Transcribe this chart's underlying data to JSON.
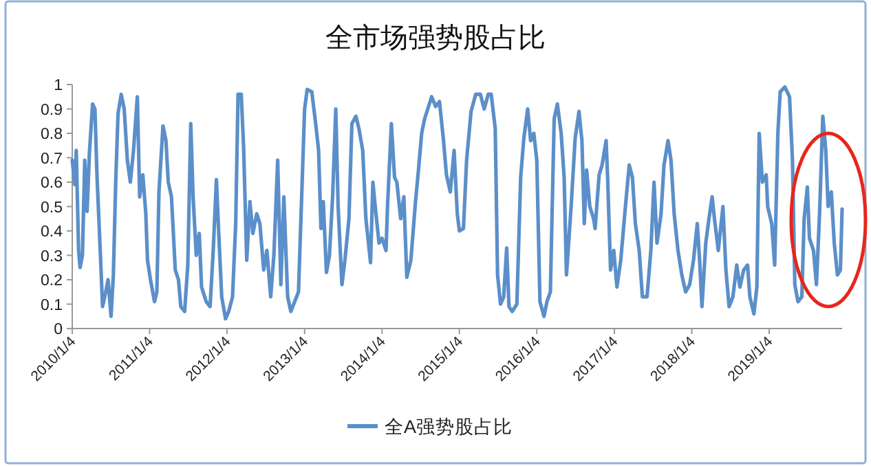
{
  "chart_data": {
    "type": "line",
    "title": "全市场强势股占比",
    "x": [
      "2010-01-04",
      "2010-01-16",
      "2010-01-23",
      "2010-02-03",
      "2010-02-10",
      "2010-02-21",
      "2010-03-04",
      "2010-03-15",
      "2010-03-26",
      "2010-04-10",
      "2010-04-21",
      "2010-05-01",
      "2010-05-16",
      "2010-05-27",
      "2010-06-11",
      "2010-06-22",
      "2010-07-06",
      "2010-07-17",
      "2010-07-28",
      "2010-08-08",
      "2010-08-23",
      "2010-09-06",
      "2010-09-21",
      "2010-10-05",
      "2010-10-20",
      "2010-11-07",
      "2010-11-18",
      "2010-12-03",
      "2010-12-17",
      "2010-12-25",
      "2011-01-08",
      "2011-01-27",
      "2011-02-07",
      "2011-02-17",
      "2011-03-08",
      "2011-03-22",
      "2011-04-02",
      "2011-04-17",
      "2011-05-05",
      "2011-05-20",
      "2011-05-31",
      "2011-06-18",
      "2011-07-03",
      "2011-07-17",
      "2011-07-28",
      "2011-08-12",
      "2011-08-26",
      "2011-09-06",
      "2011-09-28",
      "2011-10-16",
      "2011-10-31",
      "2011-11-15",
      "2011-11-26",
      "2011-12-10",
      "2011-12-28",
      "2012-01-12",
      "2012-01-30",
      "2012-02-14",
      "2012-02-25",
      "2012-03-11",
      "2012-03-22",
      "2012-04-06",
      "2012-04-21",
      "2012-05-05",
      "2012-05-23",
      "2012-06-07",
      "2012-06-25",
      "2012-07-10",
      "2012-07-28",
      "2012-08-12",
      "2012-08-30",
      "2012-09-14",
      "2012-09-28",
      "2012-10-16",
      "2012-10-31",
      "2012-12-06",
      "2013-01-04",
      "2013-01-16",
      "2013-02-07",
      "2013-02-25",
      "2013-03-11",
      "2013-03-22",
      "2013-04-02",
      "2013-04-17",
      "2013-05-01",
      "2013-05-16",
      "2013-05-31",
      "2013-06-11",
      "2013-06-29",
      "2013-07-13",
      "2013-08-01",
      "2013-08-15",
      "2013-09-03",
      "2013-09-17",
      "2013-10-05",
      "2013-10-20",
      "2013-11-11",
      "2013-11-22",
      "2013-12-03",
      "2013-12-21",
      "2014-01-04",
      "2014-01-23",
      "2014-01-30",
      "2014-02-17",
      "2014-03-04",
      "2014-03-15",
      "2014-04-02",
      "2014-04-17",
      "2014-05-01",
      "2014-05-20",
      "2014-06-11",
      "2014-06-25",
      "2014-07-10",
      "2014-07-24",
      "2014-08-08",
      "2014-08-26",
      "2014-09-14",
      "2014-10-02",
      "2014-10-20",
      "2014-11-04",
      "2014-11-22",
      "2014-12-10",
      "2014-12-25",
      "2015-01-04",
      "2015-01-23",
      "2015-02-07",
      "2015-02-28",
      "2015-03-22",
      "2015-04-13",
      "2015-05-01",
      "2015-05-20",
      "2015-06-03",
      "2015-06-22",
      "2015-07-03",
      "2015-07-17",
      "2015-08-01",
      "2015-08-15",
      "2015-08-26",
      "2015-09-10",
      "2015-10-02",
      "2015-10-20",
      "2015-11-04",
      "2015-11-22",
      "2015-12-06",
      "2015-12-21",
      "2016-01-04",
      "2016-01-19",
      "2016-02-07",
      "2016-02-21",
      "2016-03-08",
      "2016-03-26",
      "2016-04-10",
      "2016-04-28",
      "2016-05-12",
      "2016-05-23",
      "2016-06-14",
      "2016-07-03",
      "2016-07-21",
      "2016-08-04",
      "2016-08-15",
      "2016-08-26",
      "2016-09-10",
      "2016-09-28",
      "2016-10-05",
      "2016-10-24",
      "2016-11-07",
      "2016-11-26",
      "2016-12-03",
      "2016-12-17",
      "2017-01-01",
      "2017-01-16",
      "2017-02-03",
      "2017-02-25",
      "2017-03-15",
      "2017-03-30",
      "2017-04-13",
      "2017-05-01",
      "2017-05-16",
      "2017-06-07",
      "2017-06-25",
      "2017-07-10",
      "2017-07-24",
      "2017-08-12",
      "2017-08-26",
      "2017-09-14",
      "2017-09-28",
      "2017-10-13",
      "2017-10-31",
      "2017-11-18",
      "2017-12-06",
      "2017-12-25",
      "2018-01-12",
      "2018-01-30",
      "2018-02-10",
      "2018-02-21",
      "2018-03-11",
      "2018-03-26",
      "2018-04-10",
      "2018-04-21",
      "2018-05-09",
      "2018-05-31",
      "2018-06-14",
      "2018-06-29",
      "2018-07-17",
      "2018-08-04",
      "2018-08-19",
      "2018-09-06",
      "2018-09-24",
      "2018-10-05",
      "2018-10-24",
      "2018-11-07",
      "2018-11-18",
      "2018-12-03",
      "2018-12-21",
      "2018-12-28",
      "2019-01-16",
      "2019-01-30",
      "2019-02-14",
      "2019-02-25",
      "2019-03-19",
      "2019-04-10",
      "2019-04-24",
      "2019-05-05",
      "2019-05-20",
      "2019-06-07",
      "2019-06-18",
      "2019-07-03",
      "2019-07-13",
      "2019-08-01",
      "2019-08-15",
      "2019-08-30",
      "2019-09-14",
      "2019-09-28",
      "2019-10-09",
      "2019-10-24",
      "2019-11-07",
      "2019-11-22",
      "2019-12-06",
      "2019-12-14"
    ],
    "series": [
      {
        "name": "全A强势股占比",
        "color": "#5b8fc9",
        "values": [
          0.69,
          0.59,
          0.73,
          0.32,
          0.25,
          0.3,
          0.69,
          0.48,
          0.72,
          0.92,
          0.9,
          0.62,
          0.32,
          0.09,
          0.15,
          0.2,
          0.05,
          0.22,
          0.6,
          0.88,
          0.96,
          0.9,
          0.69,
          0.6,
          0.73,
          0.95,
          0.54,
          0.63,
          0.47,
          0.28,
          0.2,
          0.11,
          0.15,
          0.56,
          0.83,
          0.77,
          0.6,
          0.54,
          0.24,
          0.2,
          0.09,
          0.07,
          0.26,
          0.84,
          0.54,
          0.3,
          0.39,
          0.17,
          0.11,
          0.09,
          0.32,
          0.61,
          0.39,
          0.13,
          0.04,
          0.07,
          0.13,
          0.43,
          0.96,
          0.96,
          0.75,
          0.28,
          0.52,
          0.39,
          0.47,
          0.43,
          0.24,
          0.32,
          0.13,
          0.3,
          0.69,
          0.18,
          0.54,
          0.13,
          0.07,
          0.15,
          0.9,
          0.98,
          0.97,
          0.84,
          0.73,
          0.41,
          0.52,
          0.23,
          0.3,
          0.54,
          0.9,
          0.5,
          0.18,
          0.28,
          0.45,
          0.84,
          0.87,
          0.82,
          0.73,
          0.45,
          0.27,
          0.6,
          0.5,
          0.35,
          0.37,
          0.32,
          0.5,
          0.84,
          0.62,
          0.6,
          0.45,
          0.54,
          0.21,
          0.28,
          0.52,
          0.65,
          0.8,
          0.86,
          0.9,
          0.95,
          0.91,
          0.93,
          0.78,
          0.63,
          0.56,
          0.73,
          0.47,
          0.4,
          0.41,
          0.69,
          0.89,
          0.96,
          0.96,
          0.9,
          0.96,
          0.96,
          0.82,
          0.22,
          0.1,
          0.13,
          0.33,
          0.09,
          0.07,
          0.1,
          0.62,
          0.78,
          0.9,
          0.77,
          0.8,
          0.69,
          0.11,
          0.05,
          0.11,
          0.15,
          0.86,
          0.92,
          0.8,
          0.62,
          0.22,
          0.5,
          0.78,
          0.89,
          0.77,
          0.43,
          0.65,
          0.5,
          0.45,
          0.41,
          0.63,
          0.67,
          0.77,
          0.62,
          0.24,
          0.32,
          0.17,
          0.28,
          0.5,
          0.67,
          0.62,
          0.43,
          0.32,
          0.13,
          0.13,
          0.32,
          0.6,
          0.35,
          0.47,
          0.67,
          0.77,
          0.69,
          0.47,
          0.32,
          0.22,
          0.15,
          0.18,
          0.28,
          0.43,
          0.28,
          0.09,
          0.35,
          0.45,
          0.54,
          0.45,
          0.32,
          0.5,
          0.24,
          0.09,
          0.13,
          0.26,
          0.17,
          0.24,
          0.26,
          0.13,
          0.06,
          0.17,
          0.8,
          0.6,
          0.63,
          0.5,
          0.43,
          0.26,
          0.8,
          0.97,
          0.99,
          0.95,
          0.69,
          0.18,
          0.11,
          0.13,
          0.45,
          0.58,
          0.37,
          0.32,
          0.18,
          0.48,
          0.87,
          0.73,
          0.5,
          0.56,
          0.35,
          0.22,
          0.24,
          0.49
        ]
      }
    ],
    "xlim": [
      "2010-01-04",
      "2019-12-14"
    ],
    "xticks": [
      {
        "value": "2010-01-04",
        "label": "2010/1/4"
      },
      {
        "value": "2011-01-04",
        "label": "2011/1/4"
      },
      {
        "value": "2012-01-04",
        "label": "2012/1/4"
      },
      {
        "value": "2013-01-04",
        "label": "2013/1/4"
      },
      {
        "value": "2014-01-04",
        "label": "2014/1/4"
      },
      {
        "value": "2015-01-04",
        "label": "2015/1/4"
      },
      {
        "value": "2016-01-04",
        "label": "2016/1/4"
      },
      {
        "value": "2017-01-04",
        "label": "2017/1/4"
      },
      {
        "value": "2018-01-04",
        "label": "2018/1/4"
      },
      {
        "value": "2019-01-04",
        "label": "2019/1/4"
      }
    ],
    "ylim": [
      0,
      1
    ],
    "yticks": [
      0,
      0.1,
      0.2,
      0.3,
      0.4,
      0.5,
      0.6,
      0.7,
      0.8,
      0.9,
      1
    ],
    "legend": "bottom",
    "line_style": "solid"
  }
}
